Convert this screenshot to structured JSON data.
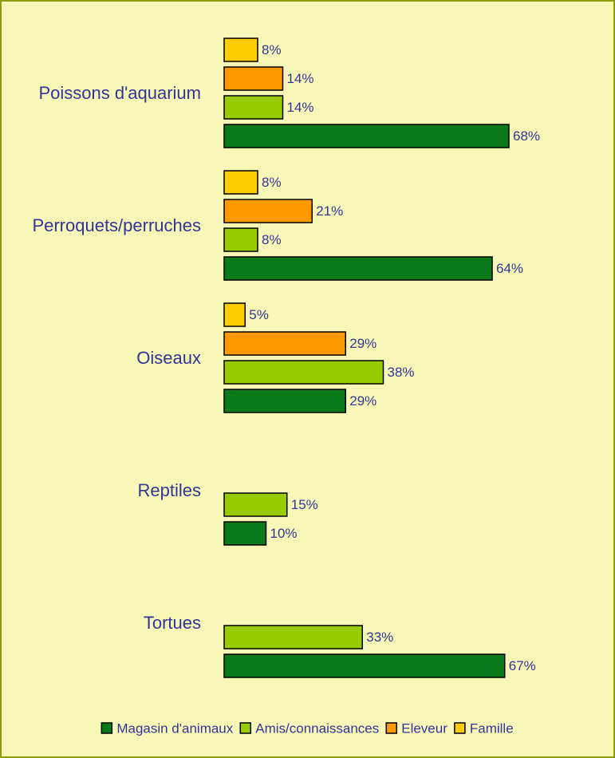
{
  "chart_data": {
    "type": "bar",
    "orientation": "horizontal",
    "categories": [
      "Poissons d'aquarium",
      "Perroquets/perruches",
      "Oiseaux",
      "Reptiles",
      "Tortues"
    ],
    "series": [
      {
        "name": "Magasin d'animaux",
        "color": "#0a7a1a",
        "values": [
          68,
          64,
          29,
          10,
          67
        ],
        "value_labels": [
          "68%",
          "64%",
          "29%",
          "10%",
          "67%"
        ]
      },
      {
        "name": "Amis/connaissances",
        "color": "#99cc00",
        "values": [
          14,
          8,
          38,
          15,
          33
        ],
        "value_labels": [
          "14%",
          "8%",
          "38%",
          "15%",
          "33%"
        ]
      },
      {
        "name": "Eleveur",
        "color": "#ff9900",
        "values": [
          14,
          21,
          29,
          null,
          null
        ],
        "value_labels": [
          "14%",
          "21%",
          "29%",
          null,
          null
        ]
      },
      {
        "name": "Famille",
        "color": "#ffcc00",
        "values": [
          8,
          8,
          5,
          null,
          null
        ],
        "value_labels": [
          "8%",
          "8%",
          "5%",
          null,
          null
        ]
      }
    ],
    "legend": "bottom"
  }
}
